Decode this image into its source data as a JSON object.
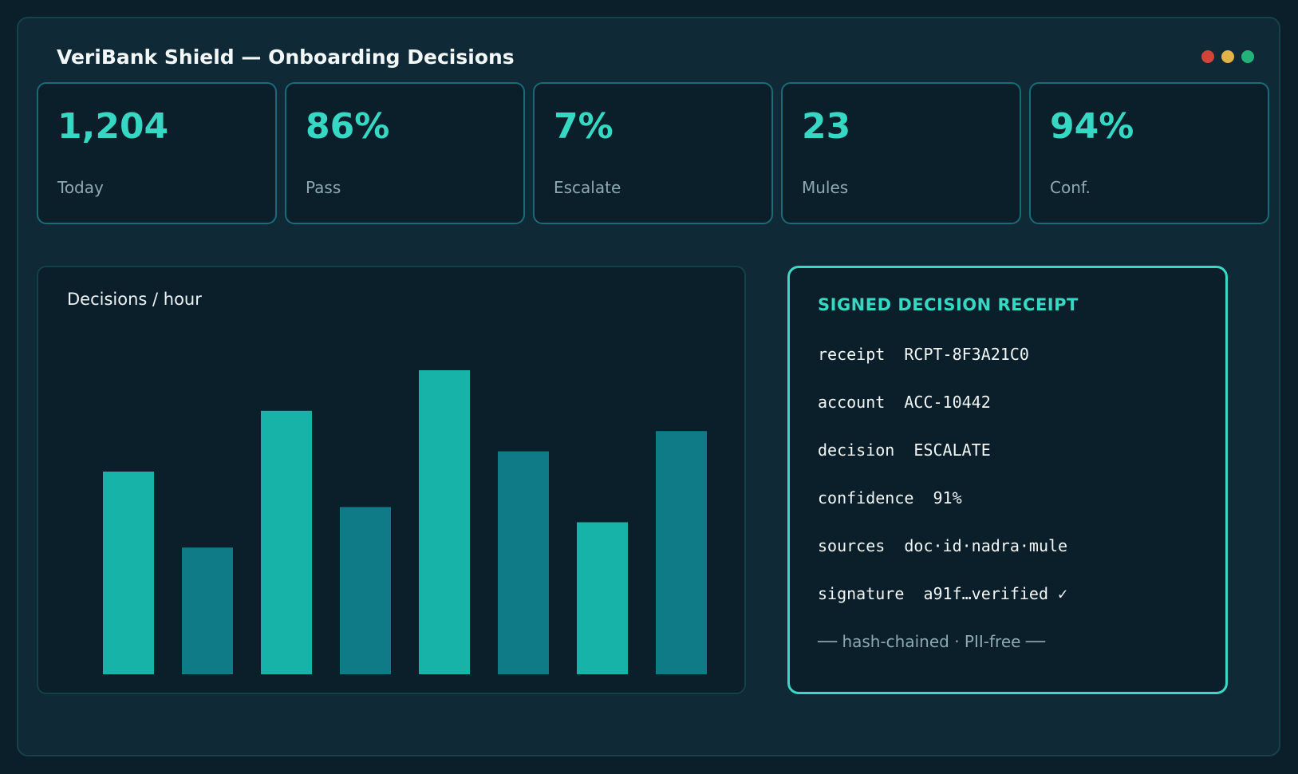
{
  "window": {
    "title": "VeriBank Shield — Onboarding Decisions",
    "controls": [
      {
        "name": "close",
        "color": "#d0443a"
      },
      {
        "name": "minimize",
        "color": "#e2b349"
      },
      {
        "name": "maximize",
        "color": "#21b37a"
      }
    ]
  },
  "kpis": [
    {
      "value": "1,204",
      "label": "Today"
    },
    {
      "value": "86%",
      "label": "Pass"
    },
    {
      "value": "7%",
      "label": "Escalate"
    },
    {
      "value": "23",
      "label": "Mules"
    },
    {
      "value": "94%",
      "label": "Conf."
    }
  ],
  "chart_data": {
    "type": "bar",
    "title": "Decisions / hour",
    "categories": [
      "",
      "",
      "",
      "",
      "",
      "",
      "",
      ""
    ],
    "values": [
      80,
      50,
      104,
      66,
      120,
      88,
      60,
      96
    ],
    "ylim": [
      0,
      120
    ],
    "grid": false,
    "colors": {
      "light": "#18b3a8",
      "dark": "#0e7b87"
    }
  },
  "receipt": {
    "heading": "SIGNED DECISION RECEIPT",
    "lines": [
      {
        "key": "receipt",
        "value": "RCPT-8F3A21C0"
      },
      {
        "key": "account",
        "value": "ACC-10442"
      },
      {
        "key": "decision",
        "value": "ESCALATE"
      },
      {
        "key": "confidence",
        "value": "91%"
      },
      {
        "key": "sources",
        "value": "doc·id·nadra·mule"
      },
      {
        "key": "signature",
        "value": "a91f…verified ✓"
      }
    ],
    "footer": "── hash-chained · PII-free ──"
  },
  "colors": {
    "accent": "#36d7c3",
    "background": "#0a1f2a",
    "panel": "#0f2936"
  }
}
